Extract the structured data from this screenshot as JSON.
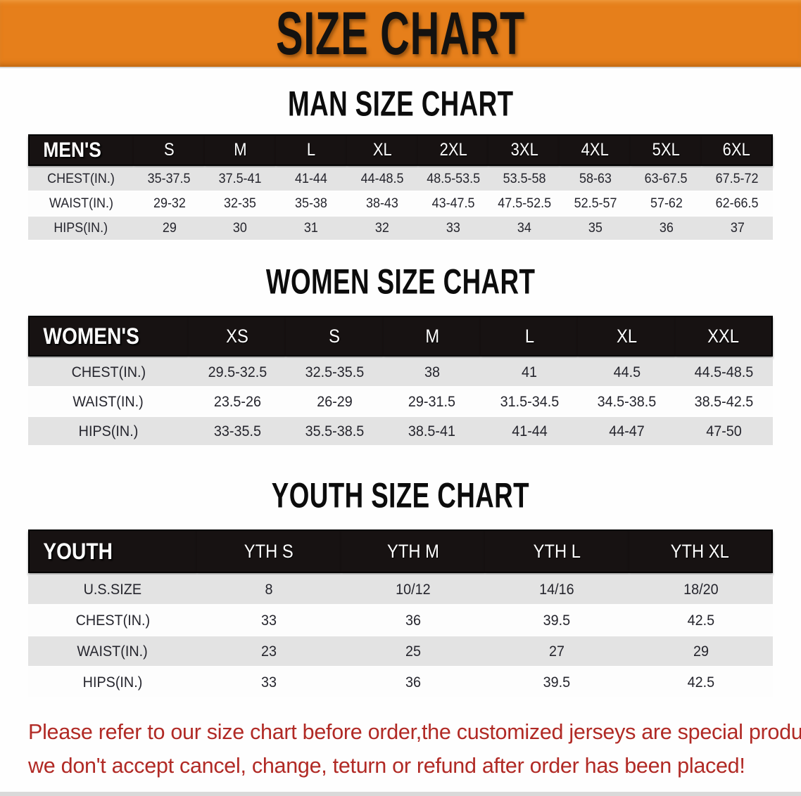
{
  "banner": {
    "title": "SIZE CHART"
  },
  "colors": {
    "banner_bg": "#E67F1B",
    "header_bar_bg": "#171212",
    "header_bar_text": "#FFFFFF",
    "row_alt_bg": "#E3E3E3",
    "row_bg": "#FDFDFD",
    "cell_text": "#25252D",
    "heading_text": "#0C0C0C",
    "disclaimer_text": "#B12A25"
  },
  "sections": [
    {
      "heading": "MAN SIZE CHART",
      "table": {
        "header_label": "MEN'S",
        "columns": [
          "S",
          "M",
          "L",
          "XL",
          "2XL",
          "3XL",
          "4XL",
          "5XL",
          "6XL"
        ],
        "rows": [
          {
            "label": "CHEST(IN.)",
            "values": [
              "35-37.5",
              "37.5-41",
              "41-44",
              "44-48.5",
              "48.5-53.5",
              "53.5-58",
              "58-63",
              "63-67.5",
              "67.5-72"
            ]
          },
          {
            "label": "WAIST(IN.)",
            "values": [
              "29-32",
              "32-35",
              "35-38",
              "38-43",
              "43-47.5",
              "47.5-52.5",
              "52.5-57",
              "57-62",
              "62-66.5"
            ]
          },
          {
            "label": "HIPS(IN.)",
            "values": [
              "29",
              "30",
              "31",
              "32",
              "33",
              "34",
              "35",
              "36",
              "37"
            ]
          }
        ]
      }
    },
    {
      "heading": "WOMEN SIZE CHART",
      "table": {
        "header_label": "WOMEN'S",
        "columns": [
          "XS",
          "S",
          "M",
          "L",
          "XL",
          "XXL"
        ],
        "rows": [
          {
            "label": "CHEST(IN.)",
            "values": [
              "29.5-32.5",
              "32.5-35.5",
              "38",
              "41",
              "44.5",
              "44.5-48.5"
            ]
          },
          {
            "label": "WAIST(IN.)",
            "values": [
              "23.5-26",
              "26-29",
              "29-31.5",
              "31.5-34.5",
              "34.5-38.5",
              "38.5-42.5"
            ]
          },
          {
            "label": "HIPS(IN.)",
            "values": [
              "33-35.5",
              "35.5-38.5",
              "38.5-41",
              "41-44",
              "44-47",
              "47-50"
            ]
          }
        ]
      }
    },
    {
      "heading": "YOUTH SIZE CHART",
      "table": {
        "header_label": "YOUTH",
        "columns": [
          "YTH S",
          "YTH M",
          "YTH L",
          "YTH XL"
        ],
        "rows": [
          {
            "label": "U.S.SIZE",
            "values": [
              "8",
              "10/12",
              "14/16",
              "18/20"
            ]
          },
          {
            "label": "CHEST(IN.)",
            "values": [
              "33",
              "36",
              "39.5",
              "42.5"
            ]
          },
          {
            "label": "WAIST(IN.)",
            "values": [
              "23",
              "25",
              "27",
              "29"
            ]
          },
          {
            "label": "HIPS(IN.)",
            "values": [
              "33",
              "36",
              "39.5",
              "42.5"
            ]
          }
        ]
      }
    }
  ],
  "disclaimer": {
    "line1": "Please refer to our size chart before order,the customized jerseys are special products,",
    "line2": "we don't accept cancel, change, teturn or refund after order has been placed!"
  }
}
